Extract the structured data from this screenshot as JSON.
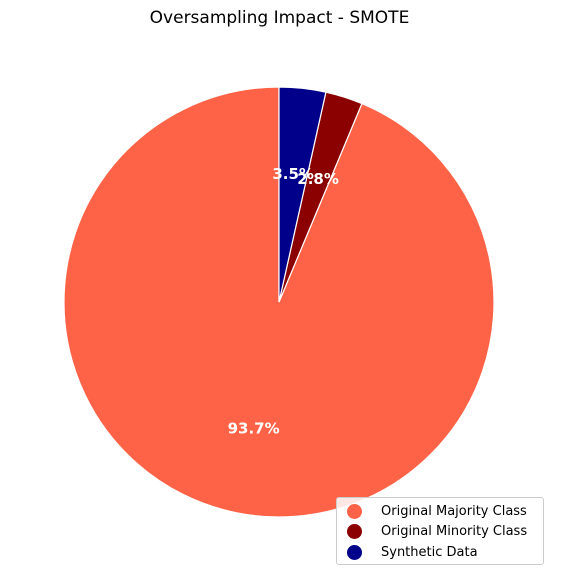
{
  "chart_data": {
    "type": "pie",
    "title": "Oversampling Impact - SMOTE",
    "slices": [
      {
        "name": "Original Majority Class",
        "value": 93.7,
        "label": "93.7%",
        "color": "#FF6347"
      },
      {
        "name": "Original Minority Class",
        "value": 2.8,
        "label": "2.8%",
        "color": "#8B0000"
      },
      {
        "name": "Synthetic Data",
        "value": 3.5,
        "label": "3.5%",
        "color": "#00008B"
      }
    ],
    "start_angle_deg": 90,
    "direction": "clockwise",
    "legend_position": "lower-right",
    "edge_color": "#FFFFFF"
  }
}
